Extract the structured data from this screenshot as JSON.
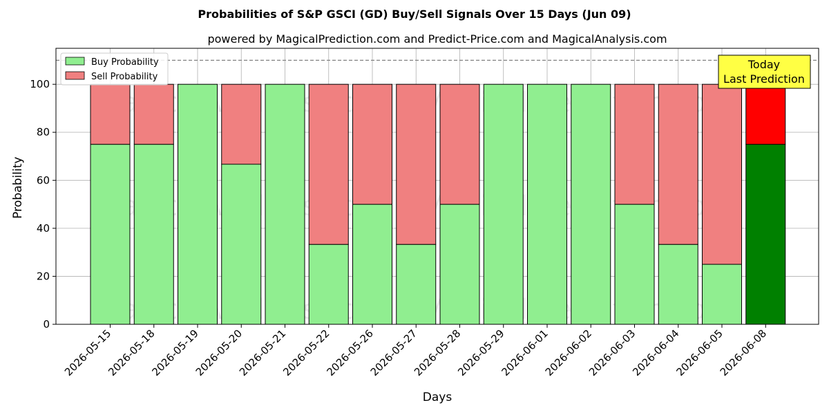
{
  "chart_data": {
    "type": "bar",
    "stacked": true,
    "title": "Probabilities of S&P GSCI (GD) Buy/Sell Signals Over 15 Days (Jun 09)",
    "subtitle": "powered by MagicalPrediction.com and Predict-Price.com and MagicalAnalysis.com",
    "xlabel": "Days",
    "ylabel": "Probability",
    "ylim": [
      0,
      115
    ],
    "yticks": [
      0,
      20,
      40,
      60,
      80,
      100
    ],
    "reference_line": 110,
    "grid": true,
    "legend_position": "top-left",
    "categories": [
      "2026-05-15",
      "2026-05-18",
      "2026-05-19",
      "2026-05-20",
      "2026-05-21",
      "2026-05-22",
      "2026-05-26",
      "2026-05-27",
      "2026-05-28",
      "2026-05-29",
      "2026-06-01",
      "2026-06-02",
      "2026-06-03",
      "2026-06-04",
      "2026-06-05",
      "2026-06-08"
    ],
    "series": [
      {
        "name": "Buy Probability",
        "color": "#90ee90",
        "highlight_color": "#008000",
        "values": [
          75,
          75,
          100,
          66.7,
          100,
          33.3,
          50,
          33.3,
          50,
          100,
          100,
          100,
          50,
          33.3,
          25,
          75
        ]
      },
      {
        "name": "Sell Probability",
        "color": "#f08080",
        "highlight_color": "#ff0000",
        "values": [
          25,
          25,
          0,
          33.3,
          0,
          66.7,
          50,
          66.7,
          50,
          0,
          0,
          0,
          50,
          66.7,
          75,
          25
        ]
      }
    ],
    "highlight_index": 15,
    "annotation": {
      "line1": "Today",
      "line2": "Last Prediction",
      "color": "#ffff44"
    },
    "watermarks": [
      "MagicalAnalysis.com",
      "MagicalPrediction.com"
    ]
  }
}
